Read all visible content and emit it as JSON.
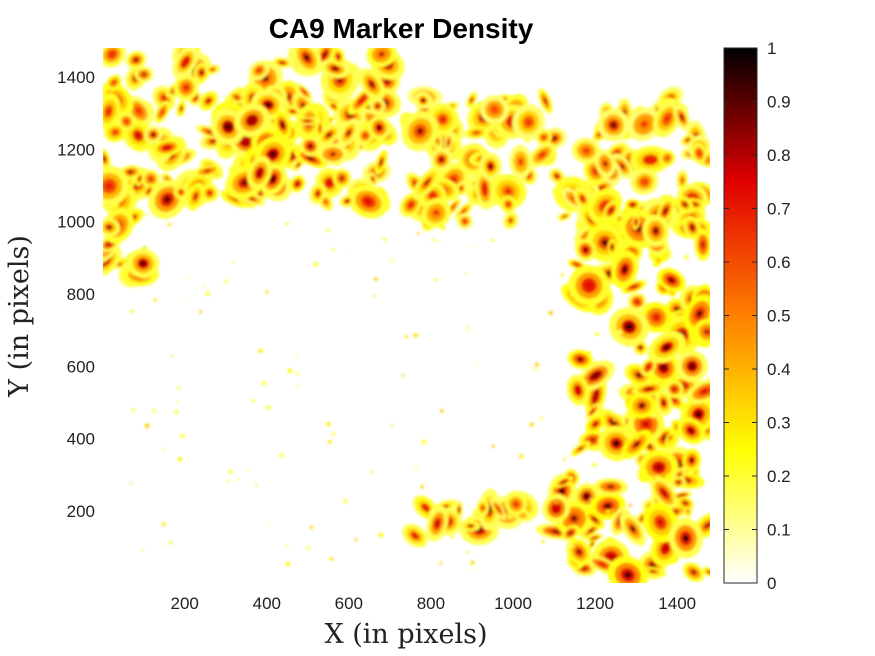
{
  "chart_data": {
    "type": "heatmap",
    "title": "CA9 Marker Density",
    "xlabel": "X (in pixels)",
    "ylabel": "Y (in pixels)",
    "xlim": [
      1,
      1480
    ],
    "ylim": [
      1,
      1480
    ],
    "x_ticks": [
      200,
      400,
      600,
      800,
      1000,
      1200,
      1400
    ],
    "y_ticks": [
      200,
      400,
      600,
      800,
      1000,
      1200,
      1400
    ],
    "colorbar": {
      "colormap": "hot (reversed)",
      "range": [
        0,
        1
      ],
      "ticks": [
        0,
        0.1,
        0.2,
        0.3,
        0.4,
        0.5,
        0.6,
        0.7,
        0.8,
        0.9,
        1
      ],
      "tick_labels": [
        "0",
        "0.1",
        "0.2",
        "0.3",
        "0.4",
        "0.5",
        "0.6",
        "0.7",
        "0.8",
        "0.9",
        "1"
      ],
      "stops": [
        {
          "v": 0.0,
          "color": "#ffffff"
        },
        {
          "v": 0.25,
          "color": "#ffff00"
        },
        {
          "v": 0.5,
          "color": "#ff7f00"
        },
        {
          "v": 0.75,
          "color": "#e10000"
        },
        {
          "v": 1.0,
          "color": "#000000"
        }
      ]
    },
    "density_regions": [
      {
        "label": "upper-left band",
        "x": [
          1,
          700
        ],
        "y": [
          1050,
          1480
        ],
        "peak": 0.9
      },
      {
        "label": "top-center clusters",
        "x": [
          300,
          550
        ],
        "y": [
          1100,
          1350
        ],
        "peak": 1.0
      },
      {
        "label": "left edge",
        "x": [
          1,
          120
        ],
        "y": [
          850,
          1150
        ],
        "peak": 0.95
      },
      {
        "label": "upper-right band",
        "x": [
          750,
          1480
        ],
        "y": [
          1000,
          1350
        ],
        "peak": 0.85
      },
      {
        "label": "right edge stripes",
        "x": [
          1150,
          1480
        ],
        "y": [
          300,
          1050
        ],
        "peak": 1.0
      },
      {
        "label": "lower-right cluster",
        "x": [
          1100,
          1480
        ],
        "y": [
          1,
          300
        ],
        "peak": 1.0
      },
      {
        "label": "bottom-center blobs",
        "x": [
          750,
          1020
        ],
        "y": [
          130,
          220
        ],
        "peak": 0.9
      }
    ]
  }
}
